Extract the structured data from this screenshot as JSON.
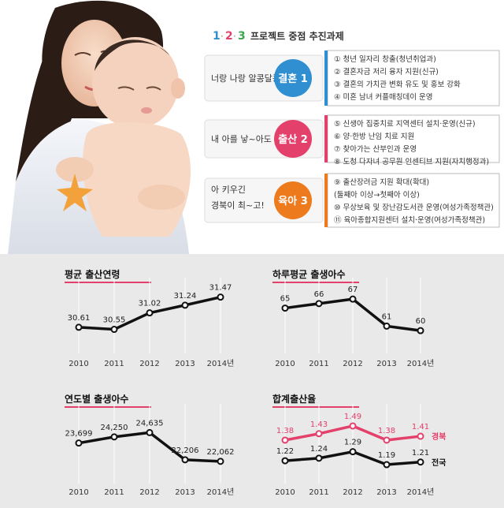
{
  "header": {
    "title_nums": [
      "1",
      "2",
      "3"
    ],
    "title_text": "프로젝트 중점 추진과제"
  },
  "colors": {
    "marriage": "#2f8fd0",
    "birth": "#e4406c",
    "childcare": "#ee7a1e",
    "gyeongbuk": "#e4406c",
    "national": "#222222",
    "header_blue": "#2f8fd0",
    "header_red": "#e4406c",
    "header_green": "#3aa64f"
  },
  "programs": [
    {
      "slogan": [
        "너랑 나랑 알콩달콩"
      ],
      "badge": "결혼 1",
      "items": [
        "① 청년 일자리 창출(청년취업과)",
        "② 결혼자금 저리 융자 지원(신규)",
        "③ 결혼의 가치관 변화 유도 및 홍보 강화",
        "④ 미혼 남녀 커플매칭데이 운영"
      ]
    },
    {
      "slogan": [
        "내 아를 낳~아도"
      ],
      "badge": "출산 2",
      "items": [
        "⑤ 신생아 집중치료 지역센터 설치·운영(신규)",
        "⑥ 양·한방 난임 치료 지원",
        "⑦ 찾아가는 산부인과 운영",
        "⑧ 도청 다자녀 공무원 인센티브 지원(자치행정과)"
      ]
    },
    {
      "slogan": [
        "아 키우긴",
        "경북이 최~고!"
      ],
      "badge": "육아 3",
      "items": [
        "⑨ 출산장려금 지원 확대(확대)",
        "(둘째아 이상→첫째아 이상)",
        "⑩ 무상보육 및 장난감도서관 운영(여성가족정책관)",
        "⑪ 육아종합지원센터 설치·운영(여성가족정책관)"
      ]
    }
  ],
  "chart_data": [
    {
      "type": "line",
      "title": "평균 출산연령",
      "categories": [
        "2010",
        "2011",
        "2012",
        "2013",
        "2014년"
      ],
      "series": [
        {
          "values": [
            30.61,
            30.55,
            31.02,
            31.24,
            31.47
          ],
          "labels": [
            "30.61",
            "30.55",
            "31.02",
            "31.24",
            "31.47"
          ]
        }
      ],
      "ylim": [
        30.0,
        31.8
      ],
      "grid": "vertical"
    },
    {
      "type": "line",
      "title": "하루평균 출생아수",
      "categories": [
        "2010",
        "2011",
        "2012",
        "2013",
        "2014년"
      ],
      "series": [
        {
          "values": [
            65,
            66,
            67,
            61,
            60
          ],
          "labels": [
            "65",
            "66",
            "67",
            "61",
            "60"
          ]
        }
      ],
      "ylim": [
        56,
        70
      ],
      "grid": "vertical"
    },
    {
      "type": "line",
      "title": "연도별 출생아수",
      "categories": [
        "2010",
        "2011",
        "2012",
        "2013",
        "2014년"
      ],
      "series": [
        {
          "values": [
            23699,
            24250,
            24635,
            22206,
            22062
          ],
          "labels": [
            "23,699",
            "24,250",
            "24,635",
            "22,206",
            "22,062"
          ]
        }
      ],
      "ylim": [
        20500,
        26500
      ],
      "grid": "vertical"
    },
    {
      "type": "line",
      "title": "합계출산율",
      "categories": [
        "2010",
        "2011",
        "2012",
        "2013",
        "2014년"
      ],
      "series": [
        {
          "name": "경북",
          "values": [
            1.38,
            1.43,
            1.49,
            1.38,
            1.41
          ],
          "labels": [
            "1.38",
            "1.43",
            "1.49",
            "1.38",
            "1.41"
          ]
        },
        {
          "name": "전국",
          "values": [
            1.22,
            1.24,
            1.29,
            1.19,
            1.21
          ],
          "labels": [
            "1.22",
            "1.24",
            "1.29",
            "1.19",
            "1.21"
          ]
        }
      ],
      "ylim": [
        1.08,
        1.6
      ],
      "grid": "vertical"
    }
  ]
}
